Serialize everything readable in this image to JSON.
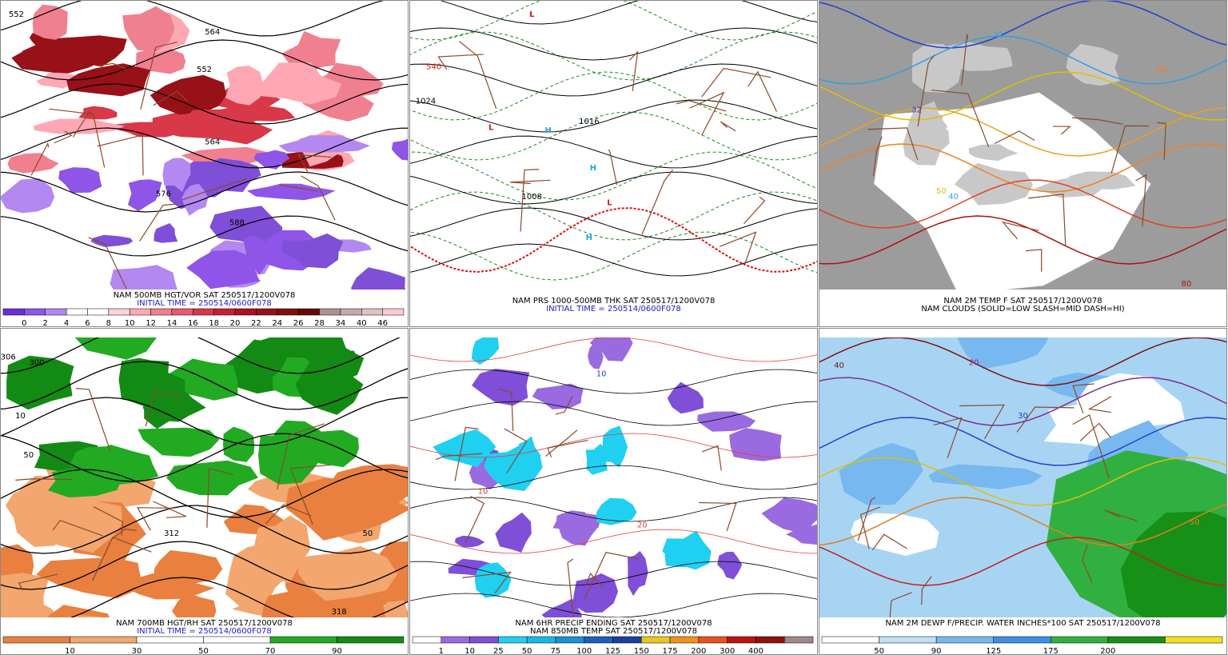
{
  "panels": [
    {
      "title": "NAM 500MB HGT/VOR SAT 250517/1200V078",
      "subtitle": "INITIAL TIME = 250514/0600F078",
      "labels": [
        {
          "text": "552",
          "color": "#000000"
        },
        {
          "text": "564",
          "color": "#000000"
        },
        {
          "text": "552",
          "color": "#000000"
        },
        {
          "text": "564",
          "color": "#000000"
        },
        {
          "text": "576",
          "color": "#000000"
        },
        {
          "text": "588",
          "color": "#000000"
        }
      ],
      "colorbar": {
        "colors": [
          "#6a2fd8",
          "#8f55e8",
          "#b388f0",
          "#ffffff",
          "#ffffff",
          "#ffd0d8",
          "#ffa8b4",
          "#f08090",
          "#e85a6a",
          "#d83848",
          "#c82030",
          "#b01020",
          "#981018",
          "#801010",
          "#6a0808",
          "#b09090",
          "#c8a8a8",
          "#e0c0c0",
          "#ffc8d0"
        ],
        "labels": [
          0,
          2,
          4,
          6,
          8,
          10,
          12,
          14,
          16,
          18,
          20,
          22,
          24,
          26,
          28,
          34,
          40,
          46
        ]
      }
    },
    {
      "title": "NAM PRS 1000-500MB THK SAT 250517/1200V078",
      "subtitle": "INITIAL TIME = 250514/0600F078",
      "labels": [
        {
          "text": "L",
          "color": "#e01010"
        },
        {
          "text": "L",
          "color": "#e01010"
        },
        {
          "text": "L",
          "color": "#e01010"
        },
        {
          "text": "H",
          "color": "#1ea7e1"
        },
        {
          "text": "H",
          "color": "#1ea7e1"
        },
        {
          "text": "H",
          "color": "#1ea7e1"
        },
        {
          "text": "1008",
          "color": "#000000"
        },
        {
          "text": "1016",
          "color": "#000000"
        },
        {
          "text": "1024",
          "color": "#000000"
        },
        {
          "text": "540",
          "color": "#e01010"
        }
      ]
    },
    {
      "title": "NAM 2M TEMP F SAT 250517/1200V078",
      "subtitle": "NAM CLOUDS (SOLID=LOW SLASH=MID DASH=HI)",
      "labels": [
        {
          "text": "32",
          "color": "#2040d0"
        },
        {
          "text": "32",
          "color": "#30a0e0"
        },
        {
          "text": "40",
          "color": "#30a0e0"
        },
        {
          "text": "50",
          "color": "#e0c000"
        },
        {
          "text": "60",
          "color": "#f08020"
        },
        {
          "text": "80",
          "color": "#b01010"
        }
      ]
    },
    {
      "title": "NAM 700MB HGT/RH SAT 250517/1200V078",
      "subtitle": "INITIAL TIME = 250514/0600F078",
      "labels": [
        {
          "text": "306",
          "color": "#000000"
        },
        {
          "text": "300",
          "color": "#000000"
        },
        {
          "text": "10",
          "color": "#000000"
        },
        {
          "text": "50",
          "color": "#000000"
        },
        {
          "text": "50",
          "color": "#000000"
        },
        {
          "text": "312",
          "color": "#000000"
        },
        {
          "text": "318",
          "color": "#000000"
        }
      ],
      "colorbar": {
        "colors": [
          "#e9803f",
          "#f3a66d",
          "#ffffff",
          "#ffffff",
          "#22aa22",
          "#138a13"
        ],
        "labels": [
          10,
          30,
          50,
          70,
          90
        ]
      }
    },
    {
      "title": "NAM 6HR PRECIP ENDING SAT 250517/1200V078",
      "subtitle": "NAM 850MB TEMP SAT 250517/1200V078",
      "labels": [
        {
          "text": "10",
          "color": "#2040d0"
        },
        {
          "text": "10",
          "color": "#e04040"
        },
        {
          "text": "20",
          "color": "#e04040"
        }
      ],
      "colorbar": {
        "colors": [
          "#ffffff",
          "#9a6ae0",
          "#7f4fd8",
          "#20d0f0",
          "#18b8e8",
          "#1a90d8",
          "#1a60c0",
          "#1a3fa0",
          "#e8c820",
          "#f09020",
          "#e85020",
          "#c01010",
          "#901010",
          "#a08888"
        ],
        "labels": [
          1,
          10,
          25,
          50,
          75,
          100,
          125,
          150,
          175,
          200,
          300,
          400
        ]
      }
    },
    {
      "title": "NAM 2M DEWP F/PRECIP. WATER INCHES*100 SAT 250517/1200V078",
      "labels": [
        {
          "text": "20",
          "color": "#803090"
        },
        {
          "text": "30",
          "color": "#2040d0"
        },
        {
          "text": "40",
          "color": "#801010"
        },
        {
          "text": "50",
          "color": "#e08020"
        }
      ],
      "colorbar": {
        "colors": [
          "#ffffff",
          "#bfe0f8",
          "#78b8f0",
          "#3d8fe8",
          "#30b040",
          "#169016",
          "#f0e020"
        ],
        "labels": [
          50,
          90,
          125,
          175,
          200
        ]
      }
    }
  ]
}
